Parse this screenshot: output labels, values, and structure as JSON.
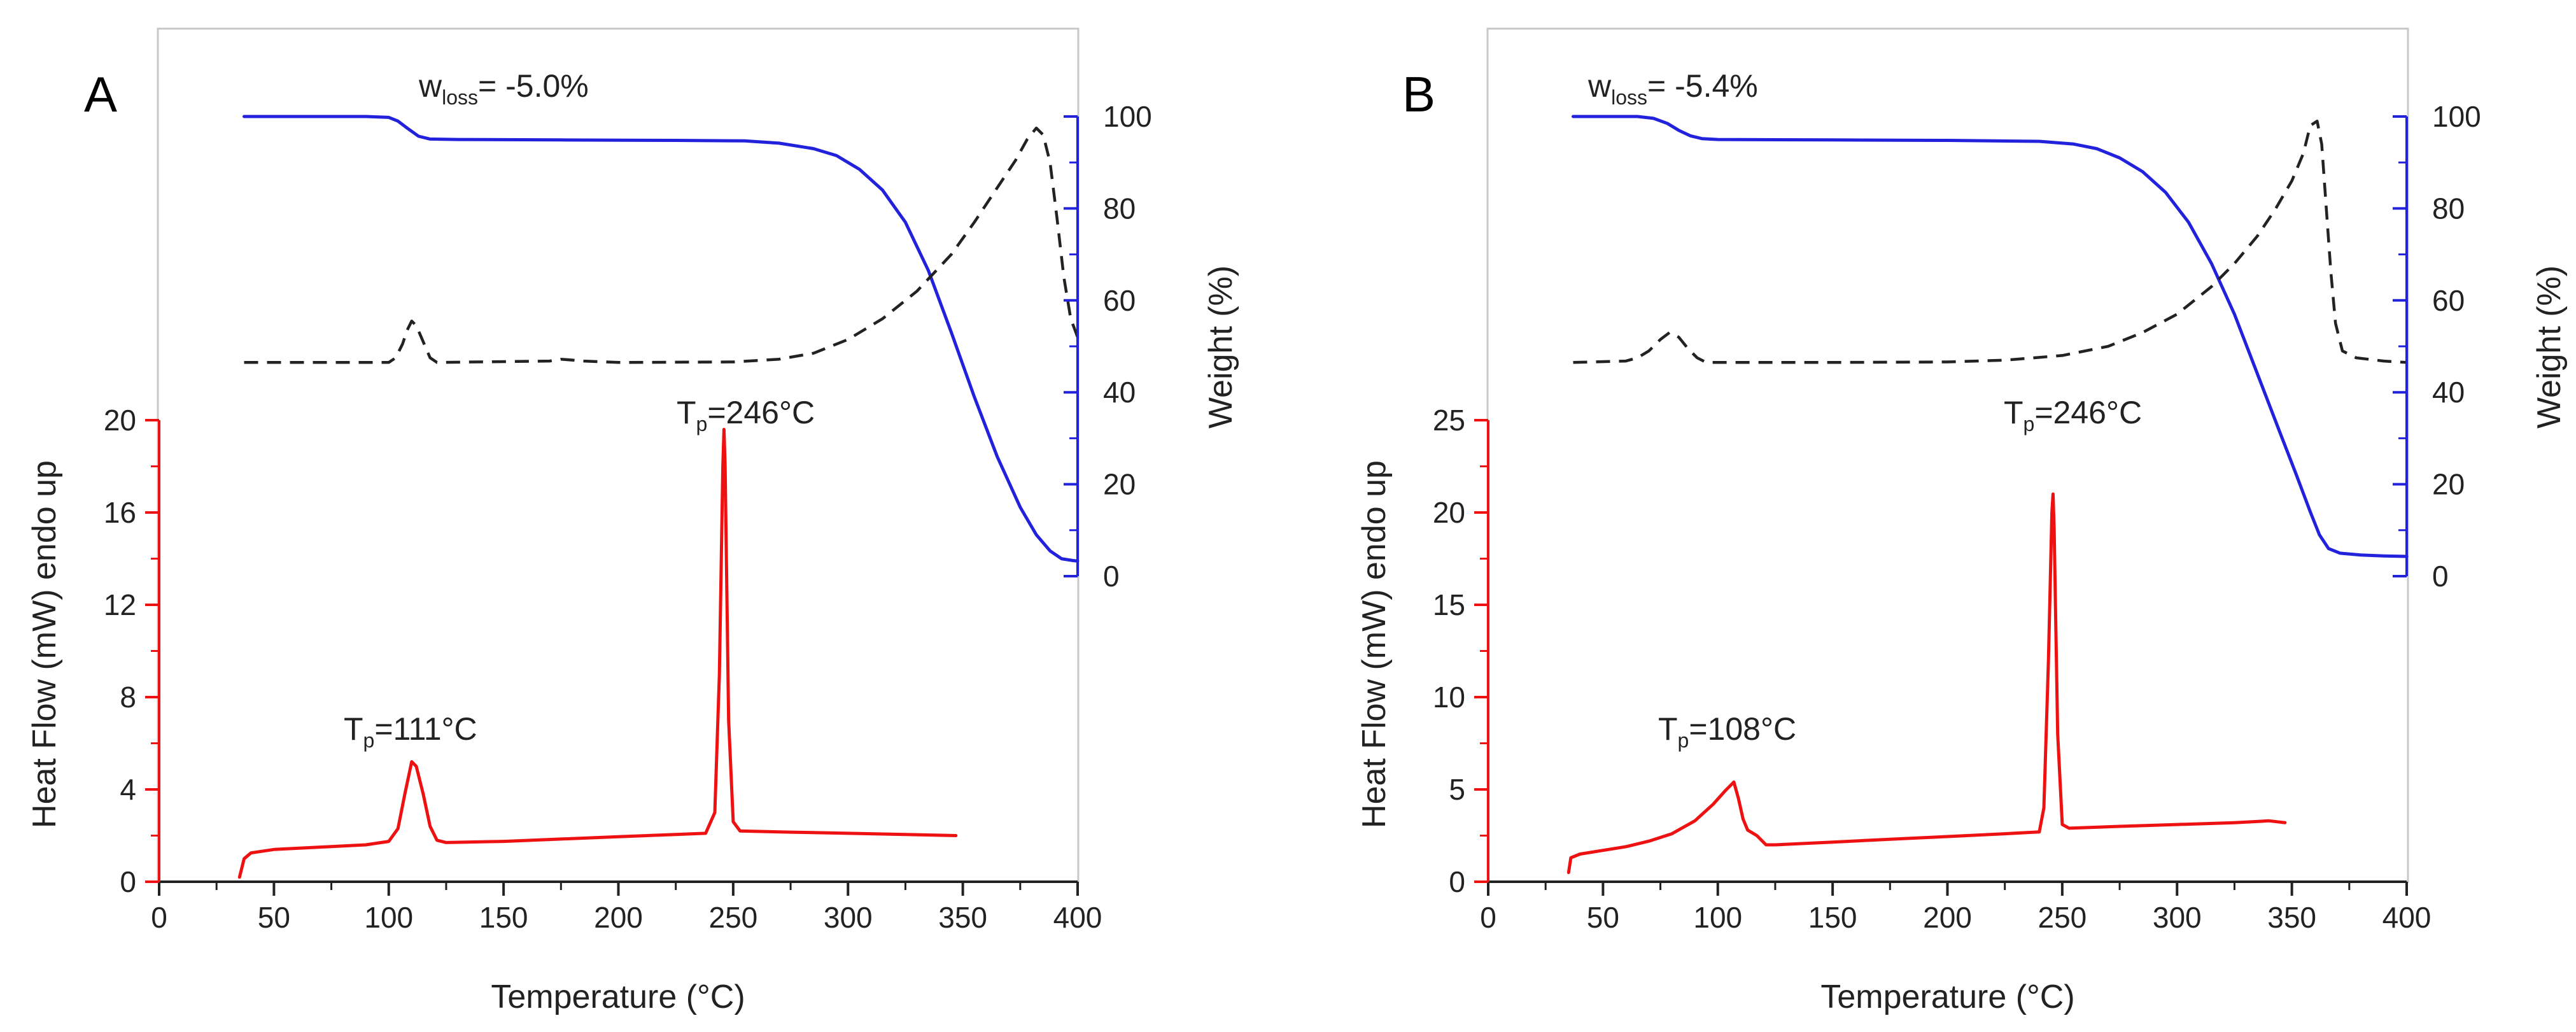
{
  "chart_data": [
    {
      "panel": "A",
      "type": "line",
      "xlabel": "Temperature (°C)",
      "ylabel_left": "Heat Flow (mW)  endo up",
      "ylabel_right": "Weight (%)",
      "xlim": [
        0,
        400
      ],
      "x_ticks": [
        0,
        50,
        100,
        150,
        200,
        250,
        300,
        350,
        400
      ],
      "ylim_left": [
        0,
        20
      ],
      "y_ticks_left": [
        0,
        4,
        8,
        12,
        16,
        20
      ],
      "ylim_right": [
        0,
        100
      ],
      "y_ticks_right": [
        0,
        20,
        40,
        60,
        80,
        100
      ],
      "annotations": [
        {
          "id": "wloss",
          "main": "w",
          "sub": "loss",
          "rest": "= -5.0%"
        },
        {
          "id": "tp1",
          "main": "T",
          "sub": "p",
          "rest": "=111°C"
        },
        {
          "id": "tp2",
          "main": "T",
          "sub": "p",
          "rest": "=246°C"
        }
      ],
      "series": [
        {
          "name": "",
          "axis": "left",
          "color": "#ee1111",
          "style": "solid",
          "points": [
            [
              35,
              0.2
            ],
            [
              37,
              1.0
            ],
            [
              40,
              1.25
            ],
            [
              50,
              1.4
            ],
            [
              70,
              1.5
            ],
            [
              90,
              1.6
            ],
            [
              100,
              1.75
            ],
            [
              104,
              2.3
            ],
            [
              107,
              3.8
            ],
            [
              110,
              5.2
            ],
            [
              112,
              5.0
            ],
            [
              115,
              3.8
            ],
            [
              118,
              2.4
            ],
            [
              121,
              1.8
            ],
            [
              125,
              1.7
            ],
            [
              150,
              1.75
            ],
            [
              175,
              1.85
            ],
            [
              200,
              1.95
            ],
            [
              225,
              2.05
            ],
            [
              238,
              2.1
            ],
            [
              242,
              3.0
            ],
            [
              244,
              9.0
            ],
            [
              245.5,
              18.0
            ],
            [
              246,
              19.6
            ],
            [
              246.5,
              18.0
            ],
            [
              248,
              7.0
            ],
            [
              250,
              2.6
            ],
            [
              253,
              2.2
            ],
            [
              275,
              2.15
            ],
            [
              300,
              2.1
            ],
            [
              325,
              2.05
            ],
            [
              347,
              2.0
            ]
          ]
        },
        {
          "name": "",
          "axis": "right",
          "color": "#2222dd",
          "style": "solid",
          "points": [
            [
              37,
              100
            ],
            [
              90,
              100
            ],
            [
              100,
              99.8
            ],
            [
              104,
              99
            ],
            [
              108,
              97.5
            ],
            [
              113,
              95.7
            ],
            [
              118,
              95.1
            ],
            [
              130,
              95.0
            ],
            [
              175,
              94.9
            ],
            [
              225,
              94.8
            ],
            [
              255,
              94.7
            ],
            [
              270,
              94.2
            ],
            [
              285,
              93.0
            ],
            [
              295,
              91.5
            ],
            [
              305,
              88.5
            ],
            [
              315,
              84.0
            ],
            [
              325,
              77.0
            ],
            [
              335,
              66.5
            ],
            [
              345,
              53.0
            ],
            [
              355,
              39.0
            ],
            [
              365,
              26.0
            ],
            [
              375,
              15.0
            ],
            [
              382,
              9.0
            ],
            [
              388,
              5.5
            ],
            [
              393,
              3.8
            ],
            [
              398,
              3.4
            ],
            [
              400,
              3.3
            ]
          ]
        },
        {
          "name": "",
          "axis": "right",
          "color": "#222222",
          "style": "dashed",
          "points": [
            [
              37,
              46.5
            ],
            [
              100,
              46.5
            ],
            [
              103,
              47.5
            ],
            [
              106,
              50.5
            ],
            [
              108,
              53.5
            ],
            [
              110,
              55.5
            ],
            [
              112,
              54.5
            ],
            [
              115,
              51
            ],
            [
              118,
              47.5
            ],
            [
              121,
              46.5
            ],
            [
              170,
              46.8
            ],
            [
              175,
              47.2
            ],
            [
              185,
              46.8
            ],
            [
              200,
              46.5
            ],
            [
              250,
              46.6
            ],
            [
              270,
              47.2
            ],
            [
              285,
              48.5
            ],
            [
              300,
              51.5
            ],
            [
              315,
              56
            ],
            [
              330,
              62
            ],
            [
              345,
              70
            ],
            [
              355,
              77
            ],
            [
              365,
              84.5
            ],
            [
              373,
              90.5
            ],
            [
              378,
              95
            ],
            [
              382,
              97.5
            ],
            [
              385,
              96
            ],
            [
              388,
              90
            ],
            [
              391,
              78
            ],
            [
              394,
              65
            ],
            [
              397,
              56
            ],
            [
              400,
              52
            ]
          ]
        }
      ]
    },
    {
      "panel": "B",
      "type": "line",
      "xlabel": "Temperature (°C)",
      "ylabel_left": "Heat Flow (mW)  endo up",
      "ylabel_right": "Weight (%)",
      "xlim": [
        0,
        400
      ],
      "x_ticks": [
        0,
        50,
        100,
        150,
        200,
        250,
        300,
        350,
        400
      ],
      "ylim_left": [
        0,
        25
      ],
      "y_ticks_left": [
        0,
        5,
        10,
        15,
        20,
        25
      ],
      "ylim_right": [
        0,
        100
      ],
      "y_ticks_right": [
        0,
        20,
        40,
        60,
        80,
        100
      ],
      "annotations": [
        {
          "id": "wloss",
          "main": "w",
          "sub": "loss",
          "rest": "= -5.4%"
        },
        {
          "id": "tp1",
          "main": "T",
          "sub": "p",
          "rest": "=108°C"
        },
        {
          "id": "tp2",
          "main": "T",
          "sub": "p",
          "rest": "=246°C"
        }
      ],
      "series": [
        {
          "name": "",
          "axis": "left",
          "color": "#ee1111",
          "style": "solid",
          "points": [
            [
              35,
              0.5
            ],
            [
              36,
              1.3
            ],
            [
              40,
              1.5
            ],
            [
              50,
              1.7
            ],
            [
              60,
              1.9
            ],
            [
              70,
              2.2
            ],
            [
              80,
              2.6
            ],
            [
              90,
              3.3
            ],
            [
              98,
              4.2
            ],
            [
              103,
              4.9
            ],
            [
              107,
              5.4
            ],
            [
              109,
              4.5
            ],
            [
              111,
              3.4
            ],
            [
              113,
              2.8
            ],
            [
              117,
              2.5
            ],
            [
              121,
              2.0
            ],
            [
              125,
              2.0
            ],
            [
              150,
              2.15
            ],
            [
              175,
              2.3
            ],
            [
              200,
              2.45
            ],
            [
              225,
              2.6
            ],
            [
              240,
              2.7
            ],
            [
              242,
              4
            ],
            [
              244,
              12
            ],
            [
              245.5,
              20
            ],
            [
              246,
              21
            ],
            [
              246.5,
              19
            ],
            [
              248,
              8
            ],
            [
              250,
              3.1
            ],
            [
              253,
              2.9
            ],
            [
              275,
              3.0
            ],
            [
              300,
              3.1
            ],
            [
              325,
              3.2
            ],
            [
              340,
              3.3
            ],
            [
              347,
              3.2
            ]
          ]
        },
        {
          "name": "",
          "axis": "right",
          "color": "#2222dd",
          "style": "solid",
          "points": [
            [
              37,
              100
            ],
            [
              65,
              100
            ],
            [
              72,
              99.6
            ],
            [
              78,
              98.5
            ],
            [
              83,
              97
            ],
            [
              88,
              95.8
            ],
            [
              93,
              95.2
            ],
            [
              100,
              95.0
            ],
            [
              150,
              94.9
            ],
            [
              200,
              94.8
            ],
            [
              240,
              94.6
            ],
            [
              255,
              94.0
            ],
            [
              265,
              93.0
            ],
            [
              275,
              91.0
            ],
            [
              285,
              88.0
            ],
            [
              295,
              83.5
            ],
            [
              305,
              77.0
            ],
            [
              315,
              68.0
            ],
            [
              325,
              57.0
            ],
            [
              335,
              44.0
            ],
            [
              345,
              31.0
            ],
            [
              352,
              22.0
            ],
            [
              358,
              14.0
            ],
            [
              362,
              9.0
            ],
            [
              366,
              6.0
            ],
            [
              371,
              5.0
            ],
            [
              380,
              4.6
            ],
            [
              390,
              4.4
            ],
            [
              400,
              4.3
            ]
          ]
        },
        {
          "name": "",
          "axis": "right",
          "color": "#222222",
          "style": "dashed",
          "points": [
            [
              37,
              46.5
            ],
            [
              60,
              46.8
            ],
            [
              65,
              47.5
            ],
            [
              70,
              49
            ],
            [
              75,
              51.5
            ],
            [
              79,
              53
            ],
            [
              83,
              52
            ],
            [
              87,
              49.5
            ],
            [
              91,
              47.5
            ],
            [
              95,
              46.5
            ],
            [
              150,
              46.5
            ],
            [
              200,
              46.6
            ],
            [
              225,
              47
            ],
            [
              250,
              48
            ],
            [
              270,
              50
            ],
            [
              285,
              53
            ],
            [
              300,
              57
            ],
            [
              315,
              63
            ],
            [
              325,
              68
            ],
            [
              335,
              74
            ],
            [
              343,
              80
            ],
            [
              350,
              86
            ],
            [
              355,
              92
            ],
            [
              358,
              98
            ],
            [
              361,
              99
            ],
            [
              363,
              94
            ],
            [
              365,
              80
            ],
            [
              367,
              66
            ],
            [
              369,
              55
            ],
            [
              372,
              49
            ],
            [
              378,
              47.5
            ],
            [
              390,
              46.8
            ],
            [
              400,
              46.5
            ]
          ]
        }
      ]
    }
  ]
}
